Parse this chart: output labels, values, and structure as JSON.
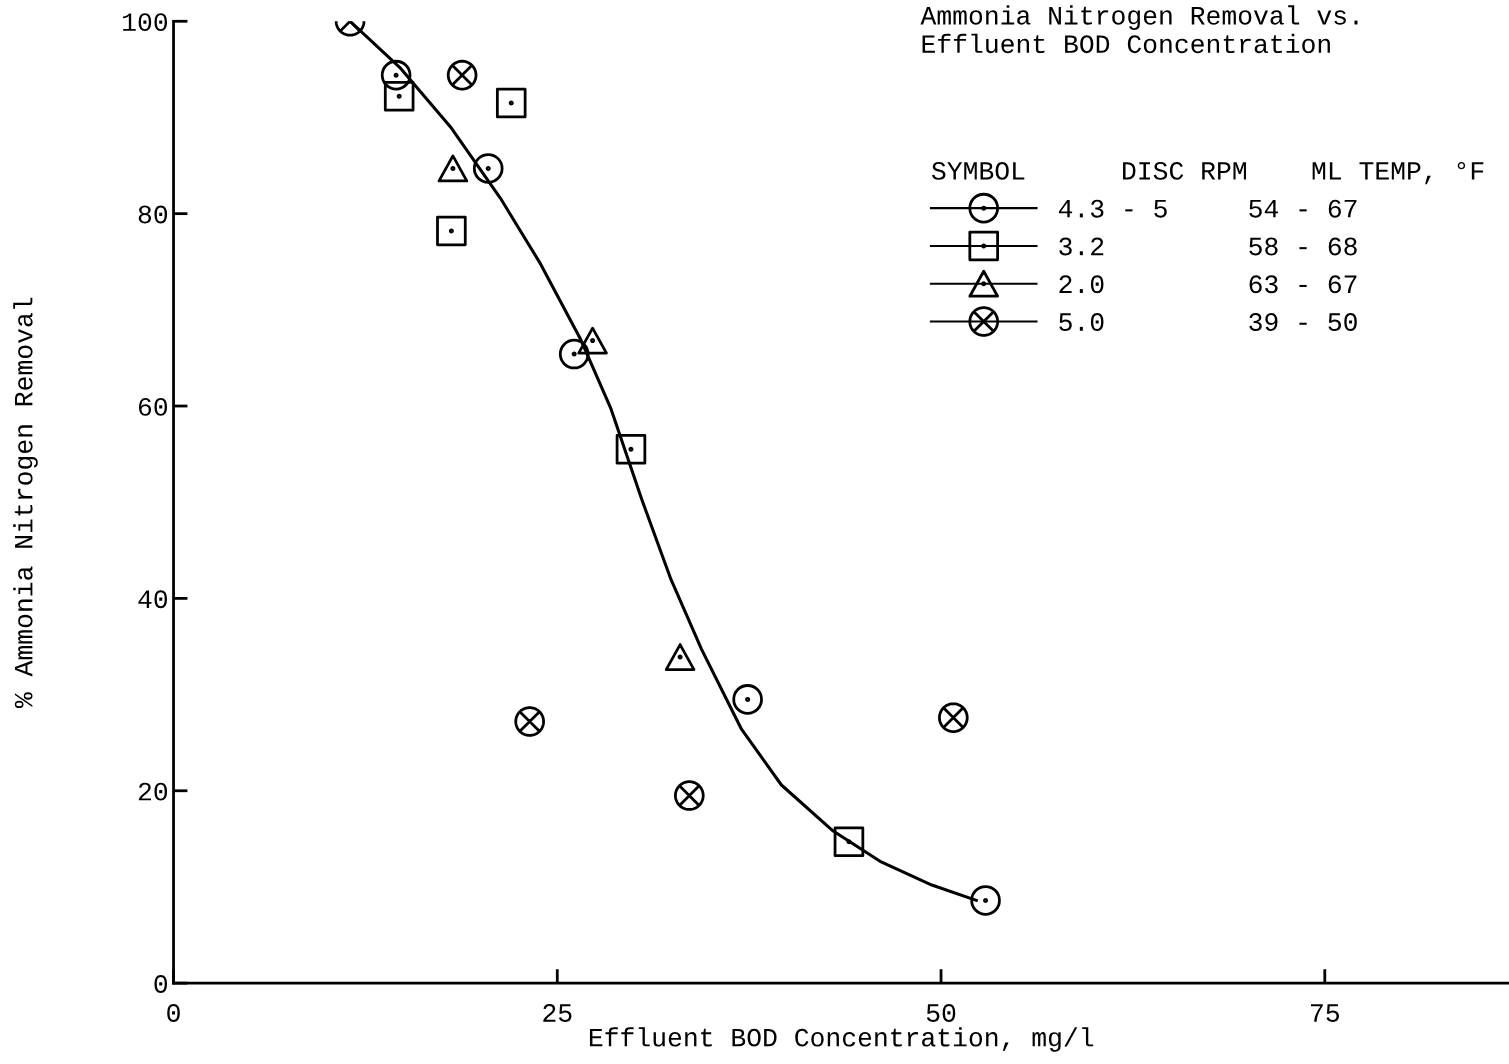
{
  "chart_data": {
    "type": "scatter",
    "title": "Ammonia Nitrogen Removal vs.\nEffluent BOD Concentration",
    "xlabel": "Effluent BOD Concentration, mg/l",
    "ylabel": "% Ammonia Nitrogen Removal",
    "legend_title": "SYMBOL      DISC RPM    ML TEMP, °F",
    "legend": "top right",
    "xlim": [
      0,
      87
    ],
    "ylim": [
      0,
      100
    ],
    "xticks": [
      0,
      25,
      50,
      75
    ],
    "yticks": [
      0,
      20,
      40,
      60,
      80,
      100
    ],
    "grid": false,
    "series": [
      {
        "name": "4.3 - 5     54 - 67",
        "color": "#000000",
        "marker": "circle",
        "x": [
          14.5,
          20.5,
          26.1,
          37.4,
          52.9
        ],
        "values": [
          94.4,
          84.7,
          65.4,
          29.5,
          8.6
        ]
      },
      {
        "name": "3.2         58 - 68",
        "color": "#000000",
        "marker": "square",
        "x": [
          14.7,
          22.0,
          18.1,
          29.8,
          44.0
        ],
        "values": [
          92.2,
          91.5,
          78.2,
          55.5,
          14.7
        ]
      },
      {
        "name": "2.0         63 - 67",
        "color": "#000000",
        "marker": "triangle",
        "x": [
          18.2,
          27.3,
          33.0
        ],
        "values": [
          84.7,
          66.8,
          33.9
        ]
      },
      {
        "name": "5.0         39 - 50",
        "color": "#000000",
        "marker": "cross",
        "x": [
          11.5,
          18.8,
          23.2,
          33.6,
          50.8
        ],
        "values": [
          100,
          94.4,
          27.2,
          19.5,
          27.6
        ]
      },
      {
        "type": "line",
        "color": "#000000",
        "marker": "none",
        "line_style": "solid",
        "x": [
          11.5,
          14.8,
          18.1,
          21.3,
          23.9,
          26.5,
          28.5,
          30.5,
          32.4,
          34.4,
          37.0,
          39.6,
          42.9,
          46.1,
          49.4,
          52.3
        ],
        "values": [
          100,
          95.1,
          88.9,
          81.6,
          74.8,
          67.0,
          59.7,
          50.3,
          42.0,
          34.7,
          26.4,
          20.6,
          15.9,
          12.6,
          10.2,
          8.6
        ]
      }
    ]
  }
}
